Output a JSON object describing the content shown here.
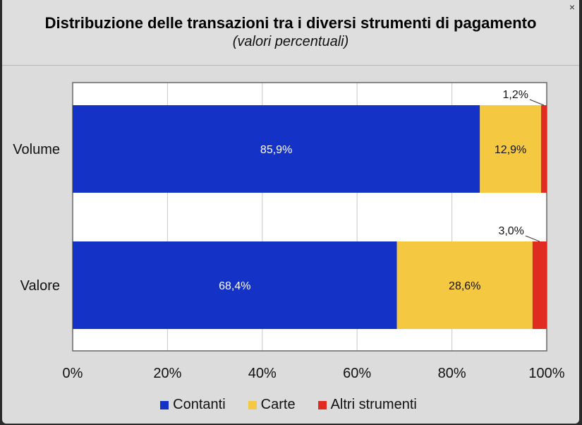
{
  "window": {
    "close_label": "×"
  },
  "chart_data": {
    "type": "bar",
    "orientation": "horizontal",
    "stacked": true,
    "title": "Distribuzione delle transazioni tra i diversi strumenti di pagamento",
    "subtitle": "(valori percentuali)",
    "categories": [
      "Volume",
      "Valore"
    ],
    "series": [
      {
        "name": "Contanti",
        "values": [
          85.9,
          68.4
        ],
        "labels": [
          "85,9%",
          "68,4%"
        ],
        "color": "#1433c6",
        "label_color": "#ffffff"
      },
      {
        "name": "Carte",
        "values": [
          12.9,
          28.6
        ],
        "labels": [
          "12,9%",
          "28,6%"
        ],
        "color": "#f5c842",
        "label_color": "#111111"
      },
      {
        "name": "Altri strumenti",
        "values": [
          1.2,
          3.0
        ],
        "labels": [
          "1,2%",
          "3,0%"
        ],
        "color": "#e02b20",
        "label_color": "#111111"
      }
    ],
    "xlim": [
      0,
      100
    ],
    "xticks": [
      "0%",
      "20%",
      "40%",
      "60%",
      "80%",
      "100%"
    ],
    "grid": true,
    "legend_position": "bottom"
  }
}
